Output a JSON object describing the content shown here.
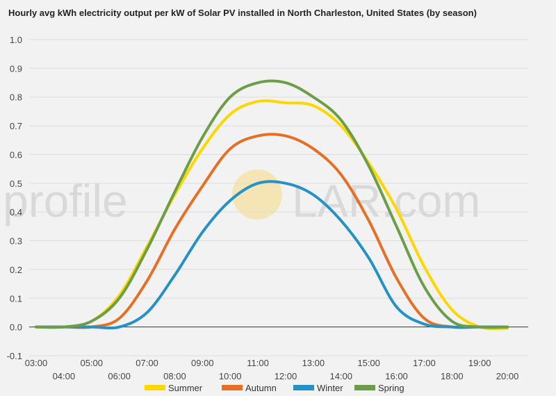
{
  "chart_data": {
    "type": "line",
    "title": "Hourly avg kWh electricity output per kW of Solar PV installed in North Charleston, United States (by season)",
    "xlabel": "",
    "ylabel": "",
    "ylim": [
      -0.1,
      1.0
    ],
    "y_ticks": [
      "1.0",
      "0.9",
      "0.8",
      "0.7",
      "0.6",
      "0.5",
      "0.4",
      "0.3",
      "0.2",
      "0.1",
      "0.0",
      "-0.1"
    ],
    "y_tick_values": [
      1.0,
      0.9,
      0.8,
      0.7,
      0.6,
      0.5,
      0.4,
      0.3,
      0.2,
      0.1,
      0.0,
      -0.1
    ],
    "categories": [
      "03:00",
      "04:00",
      "05:00",
      "06:00",
      "07:00",
      "08:00",
      "09:00",
      "10:00",
      "11:00",
      "12:00",
      "13:00",
      "14:00",
      "15:00",
      "16:00",
      "17:00",
      "18:00",
      "19:00",
      "20:00"
    ],
    "x_hours": [
      3,
      4,
      5,
      6,
      7,
      8,
      9,
      10,
      11,
      12,
      13,
      14,
      15,
      16,
      17,
      18,
      19,
      20
    ],
    "grid": true,
    "legend_position": "bottom",
    "series": [
      {
        "name": "Summer",
        "color": "#ffd700",
        "values": [
          0.0,
          0.0,
          0.02,
          0.11,
          0.28,
          0.46,
          0.62,
          0.74,
          0.785,
          0.78,
          0.77,
          0.7,
          0.57,
          0.41,
          0.21,
          0.06,
          0.0,
          -0.005
        ]
      },
      {
        "name": "Autumn",
        "color": "#e57025",
        "values": [
          0.0,
          0.0,
          0.0,
          0.03,
          0.16,
          0.34,
          0.49,
          0.62,
          0.665,
          0.665,
          0.62,
          0.53,
          0.37,
          0.17,
          0.03,
          0.0,
          0.0,
          0.0
        ]
      },
      {
        "name": "Winter",
        "color": "#2591c5",
        "values": [
          0.0,
          0.0,
          0.0,
          0.0,
          0.05,
          0.18,
          0.33,
          0.44,
          0.5,
          0.5,
          0.46,
          0.37,
          0.24,
          0.07,
          0.01,
          0.0,
          0.0,
          0.0
        ]
      },
      {
        "name": "Spring",
        "color": "#6b9e46",
        "values": [
          0.0,
          0.0,
          0.02,
          0.1,
          0.27,
          0.47,
          0.66,
          0.8,
          0.85,
          0.85,
          0.8,
          0.72,
          0.56,
          0.35,
          0.14,
          0.02,
          0.0,
          0.0
        ]
      }
    ]
  },
  "watermark": {
    "text_left": "profile",
    "text_right": "LAR.com",
    "sun_color": "#f7dc8a"
  }
}
